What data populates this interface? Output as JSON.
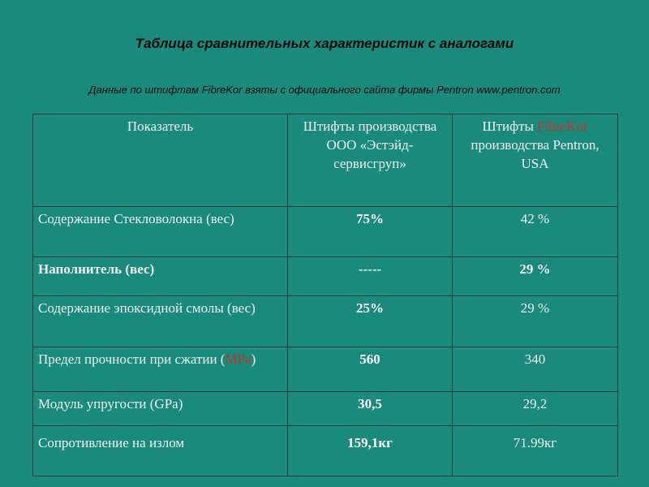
{
  "header": {
    "title": "Таблица сравнительных характеристик с аналогами",
    "subtitle": "Данные по штифтам FibreKor взяты с официального сайта фирмы Pentron www.pentron.com"
  },
  "table": {
    "headers": {
      "param": "Показатель",
      "ours": "Штифты производства ООО «Эстэйд-сервисгруп»",
      "theirs_prefix": "Штифты ",
      "theirs_brand": "FibreKor",
      "theirs_suffix": " производства Pentron, USA"
    },
    "rows": [
      {
        "param": "Содержание Стекловолокна (вес)",
        "ours": "75%",
        "theirs": "42 %"
      },
      {
        "param": "Наполнитель (вес)",
        "ours": "-----",
        "theirs": "29 %"
      },
      {
        "param": "Содержание эпоксидной смолы (вес)",
        "ours": "25%",
        "theirs": "29 %"
      },
      {
        "param_prefix": "Предел прочности при сжатии (",
        "param_unit": "MPa",
        "param_suffix": ")",
        "ours": "560",
        "theirs": "340"
      },
      {
        "param": "Модуль упругости (GPa)",
        "ours": "30,5",
        "theirs": "29,2"
      },
      {
        "param": "Сопротивление на излом",
        "ours": "159,1кг",
        "theirs": "71.99кг"
      }
    ]
  },
  "colors": {
    "background": "#1a8a7c",
    "highlight_red": "#c8302a",
    "text": "#f2f2f2"
  }
}
